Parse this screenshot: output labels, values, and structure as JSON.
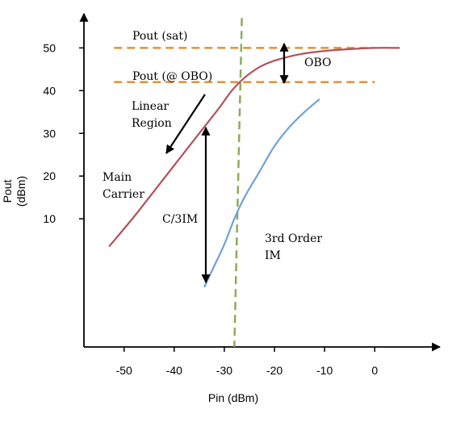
{
  "chart_data": {
    "type": "line",
    "title": "",
    "xlabel": "Pin (dBm)",
    "ylabel": [
      "Pout",
      "(dBm)"
    ],
    "xlim": [
      -58,
      13
    ],
    "ylim": [
      -20,
      58
    ],
    "x_ticks": [
      -50,
      -40,
      -30,
      -20,
      -10,
      0
    ],
    "x_tick_labels": [
      "-50",
      "-40",
      "-30",
      "-20",
      "-10",
      "0"
    ],
    "y_ticks": [
      10,
      20,
      30,
      40,
      50
    ],
    "y_tick_labels": [
      "10",
      "20",
      "30",
      "40",
      "50"
    ],
    "grid": false,
    "series": [
      {
        "name": "Main Carrier",
        "color": "#b0525a",
        "points": [
          [
            -53,
            3.5
          ],
          [
            -48,
            10.5
          ],
          [
            -43,
            18
          ],
          [
            -38,
            25.5
          ],
          [
            -34,
            31.5
          ],
          [
            -31,
            36
          ],
          [
            -28.5,
            40
          ],
          [
            -26,
            43
          ],
          [
            -23,
            45.5
          ],
          [
            -20,
            47
          ],
          [
            -15,
            48.5
          ],
          [
            -10,
            49.3
          ],
          [
            -5,
            49.7
          ],
          [
            0,
            50
          ],
          [
            5,
            50
          ]
        ]
      },
      {
        "name": "3rd Order IM",
        "color": "#6fa2d6",
        "points": [
          [
            -34,
            -6
          ],
          [
            -32,
            -1
          ],
          [
            -30,
            4
          ],
          [
            -28,
            10
          ],
          [
            -26,
            15
          ],
          [
            -23,
            21
          ],
          [
            -20,
            27
          ],
          [
            -17,
            31.5
          ],
          [
            -14,
            35
          ],
          [
            -11,
            38
          ]
        ]
      }
    ],
    "reference_lines": {
      "pout_sat": {
        "label": "Pout (sat)",
        "y": 50,
        "x_range": [
          -52,
          0
        ],
        "color": "#e0913c"
      },
      "pout_obo": {
        "label": "Pout (@ OBO)",
        "y": 42,
        "x_range": [
          -52,
          0
        ],
        "color": "#e0913c"
      },
      "vertical": {
        "x_range": [
          -26.5,
          -28
        ],
        "y_range": [
          57,
          -20
        ],
        "color": "#8aac5a"
      }
    },
    "annotations": {
      "linear_region": [
        "Linear",
        "Region"
      ],
      "main_carrier": [
        "Main",
        "Carrier"
      ],
      "c3im": "C/3IM",
      "third_order": [
        "3rd Order",
        "IM"
      ],
      "obo": "OBO"
    }
  }
}
